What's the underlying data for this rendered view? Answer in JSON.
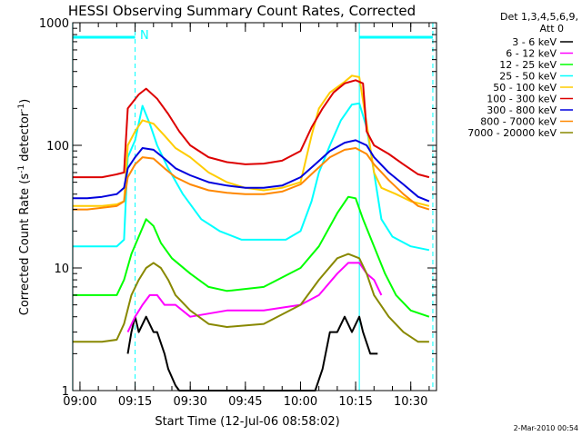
{
  "chart_data": {
    "type": "line",
    "title": "HESSI Observing Summary Count Rates, Corrected",
    "xlabel": "Start Time (12-Jul-06 08:58:02)",
    "ylabel": "Corrected Count Rate (s",
    "ylabel_sup1": "-1",
    "ylabel_mid": " detector",
    "ylabel_sup2": "-1",
    "ylabel_end": ")",
    "y_scale": "log",
    "ylim": [
      1,
      1000
    ],
    "y_ticks": [
      1,
      10,
      100,
      1000
    ],
    "y_tick_labels": [
      "1",
      "10",
      "100",
      "1000"
    ],
    "x_ticks": [
      "09:00",
      "09:15",
      "09:30",
      "09:45",
      "10:00",
      "10:15",
      "10:30"
    ],
    "x_range": [
      "08:58:02",
      "10:37:00"
    ],
    "legend_header": [
      "Det 1,3,4,5,6,9,",
      "Att 0"
    ],
    "legend_position": "right",
    "footer": "2-Mar-2010 00:54",
    "annotations": {
      "night_marker": "N"
    },
    "intervals": {
      "night_bars": [
        [
          "08:58",
          "09:15"
        ],
        [
          "10:16",
          "10:36"
        ]
      ],
      "dashed_lines": [
        "09:15",
        "10:36"
      ],
      "solid_lines": [
        "08:58",
        "10:16"
      ]
    },
    "series": [
      {
        "name": "3 - 6 keV",
        "color": "#000000",
        "points": [
          [
            "09:13",
            2
          ],
          [
            "09:14",
            3
          ],
          [
            "09:15",
            4
          ],
          [
            "09:16",
            3
          ],
          [
            "09:18",
            4
          ],
          [
            "09:20",
            3
          ],
          [
            "09:21",
            3
          ],
          [
            "09:23",
            2
          ],
          [
            "09:24",
            1.5
          ],
          [
            "09:26",
            1.1
          ],
          [
            "09:27",
            1.0
          ],
          [
            "10:04",
            1.0
          ],
          [
            "10:06",
            1.5
          ],
          [
            "10:08",
            3
          ],
          [
            "10:10",
            3
          ],
          [
            "10:12",
            4
          ],
          [
            "10:14",
            3
          ],
          [
            "10:16",
            4
          ],
          [
            "10:17",
            3
          ],
          [
            "10:19",
            2
          ],
          [
            "10:21",
            2
          ]
        ]
      },
      {
        "name": "6 - 12 keV",
        "color": "#ff00ff",
        "points": [
          [
            "09:13",
            3
          ],
          [
            "09:15",
            4
          ],
          [
            "09:17",
            5
          ],
          [
            "09:19",
            6
          ],
          [
            "09:21",
            6
          ],
          [
            "09:23",
            5
          ],
          [
            "09:26",
            5
          ],
          [
            "09:30",
            4
          ],
          [
            "09:40",
            4.5
          ],
          [
            "09:50",
            4.5
          ],
          [
            "10:00",
            5
          ],
          [
            "10:05",
            6
          ],
          [
            "10:10",
            9
          ],
          [
            "10:13",
            11
          ],
          [
            "10:16",
            11
          ],
          [
            "10:18",
            9
          ],
          [
            "10:20",
            8
          ],
          [
            "10:22",
            6
          ]
        ]
      },
      {
        "name": "12 - 25 keV",
        "color": "#00ff00",
        "points": [
          [
            "08:58",
            6
          ],
          [
            "09:02",
            6
          ],
          [
            "09:06",
            6
          ],
          [
            "09:10",
            6
          ],
          [
            "09:12",
            8
          ],
          [
            "09:14",
            13
          ],
          [
            "09:16",
            18
          ],
          [
            "09:18",
            25
          ],
          [
            "09:20",
            22
          ],
          [
            "09:22",
            16
          ],
          [
            "09:25",
            12
          ],
          [
            "09:30",
            9
          ],
          [
            "09:35",
            7
          ],
          [
            "09:40",
            6.5
          ],
          [
            "09:50",
            7
          ],
          [
            "10:00",
            10
          ],
          [
            "10:05",
            15
          ],
          [
            "10:10",
            28
          ],
          [
            "10:13",
            38
          ],
          [
            "10:15",
            37
          ],
          [
            "10:17",
            25
          ],
          [
            "10:20",
            15
          ],
          [
            "10:23",
            9
          ],
          [
            "10:26",
            6
          ],
          [
            "10:30",
            4.5
          ],
          [
            "10:35",
            4
          ]
        ]
      },
      {
        "name": "25 - 50 keV",
        "color": "#00ffff",
        "points": [
          [
            "08:58",
            15
          ],
          [
            "09:02",
            15
          ],
          [
            "09:06",
            15
          ],
          [
            "09:10",
            15
          ],
          [
            "09:12",
            17
          ],
          [
            "09:13",
            80
          ],
          [
            "09:15",
            110
          ],
          [
            "09:17",
            210
          ],
          [
            "09:19",
            150
          ],
          [
            "09:21",
            100
          ],
          [
            "09:24",
            65
          ],
          [
            "09:28",
            40
          ],
          [
            "09:33",
            25
          ],
          [
            "09:38",
            20
          ],
          [
            "09:44",
            17
          ],
          [
            "09:50",
            17
          ],
          [
            "09:56",
            17
          ],
          [
            "10:00",
            20
          ],
          [
            "10:03",
            35
          ],
          [
            "10:05",
            60
          ],
          [
            "10:08",
            100
          ],
          [
            "10:11",
            160
          ],
          [
            "10:14",
            215
          ],
          [
            "10:16",
            220
          ],
          [
            "10:18",
            140
          ],
          [
            "10:20",
            60
          ],
          [
            "10:22",
            25
          ],
          [
            "10:25",
            18
          ],
          [
            "10:30",
            15
          ],
          [
            "10:35",
            14
          ]
        ]
      },
      {
        "name": "50 - 100 keV",
        "color": "#ffcc00",
        "points": [
          [
            "08:58",
            32
          ],
          [
            "09:02",
            32
          ],
          [
            "09:06",
            32
          ],
          [
            "09:10",
            33
          ],
          [
            "09:12",
            35
          ],
          [
            "09:13",
            100
          ],
          [
            "09:15",
            130
          ],
          [
            "09:17",
            160
          ],
          [
            "09:20",
            150
          ],
          [
            "09:23",
            120
          ],
          [
            "09:26",
            95
          ],
          [
            "09:30",
            80
          ],
          [
            "09:35",
            60
          ],
          [
            "09:40",
            50
          ],
          [
            "09:45",
            45
          ],
          [
            "09:50",
            43
          ],
          [
            "09:55",
            45
          ],
          [
            "10:00",
            50
          ],
          [
            "10:03",
            120
          ],
          [
            "10:05",
            200
          ],
          [
            "10:08",
            270
          ],
          [
            "10:12",
            330
          ],
          [
            "10:14",
            370
          ],
          [
            "10:16",
            360
          ],
          [
            "10:18",
            150
          ],
          [
            "10:20",
            60
          ],
          [
            "10:22",
            45
          ],
          [
            "10:26",
            40
          ],
          [
            "10:30",
            35
          ],
          [
            "10:35",
            32
          ]
        ]
      },
      {
        "name": "100 - 300 keV",
        "color": "#dd0000",
        "points": [
          [
            "08:58",
            55
          ],
          [
            "09:02",
            55
          ],
          [
            "09:06",
            55
          ],
          [
            "09:10",
            58
          ],
          [
            "09:12",
            60
          ],
          [
            "09:13",
            200
          ],
          [
            "09:16",
            260
          ],
          [
            "09:18",
            290
          ],
          [
            "09:21",
            240
          ],
          [
            "09:24",
            180
          ],
          [
            "09:27",
            130
          ],
          [
            "09:30",
            100
          ],
          [
            "09:35",
            80
          ],
          [
            "09:40",
            73
          ],
          [
            "09:45",
            70
          ],
          [
            "09:50",
            71
          ],
          [
            "09:55",
            75
          ],
          [
            "10:00",
            90
          ],
          [
            "10:03",
            140
          ],
          [
            "10:06",
            200
          ],
          [
            "10:09",
            270
          ],
          [
            "10:12",
            320
          ],
          [
            "10:15",
            340
          ],
          [
            "10:17",
            320
          ],
          [
            "10:18",
            130
          ],
          [
            "10:20",
            100
          ],
          [
            "10:24",
            85
          ],
          [
            "10:28",
            70
          ],
          [
            "10:32",
            58
          ],
          [
            "10:35",
            55
          ]
        ]
      },
      {
        "name": "300 - 800 keV",
        "color": "#0000dd",
        "points": [
          [
            "08:58",
            37
          ],
          [
            "09:02",
            37
          ],
          [
            "09:06",
            38
          ],
          [
            "09:10",
            40
          ],
          [
            "09:12",
            45
          ],
          [
            "09:13",
            65
          ],
          [
            "09:15",
            80
          ],
          [
            "09:17",
            95
          ],
          [
            "09:20",
            92
          ],
          [
            "09:23",
            78
          ],
          [
            "09:26",
            65
          ],
          [
            "09:30",
            57
          ],
          [
            "09:35",
            50
          ],
          [
            "09:40",
            47
          ],
          [
            "09:45",
            45
          ],
          [
            "09:50",
            45
          ],
          [
            "09:55",
            47
          ],
          [
            "10:00",
            55
          ],
          [
            "10:04",
            70
          ],
          [
            "10:08",
            90
          ],
          [
            "10:12",
            105
          ],
          [
            "10:15",
            110
          ],
          [
            "10:18",
            100
          ],
          [
            "10:20",
            80
          ],
          [
            "10:24",
            60
          ],
          [
            "10:28",
            48
          ],
          [
            "10:32",
            38
          ],
          [
            "10:35",
            35
          ]
        ]
      },
      {
        "name": "800 - 7000 keV",
        "color": "#ff8800",
        "points": [
          [
            "08:58",
            30
          ],
          [
            "09:02",
            30
          ],
          [
            "09:06",
            31
          ],
          [
            "09:10",
            32
          ],
          [
            "09:12",
            35
          ],
          [
            "09:13",
            55
          ],
          [
            "09:15",
            70
          ],
          [
            "09:17",
            80
          ],
          [
            "09:20",
            78
          ],
          [
            "09:23",
            65
          ],
          [
            "09:26",
            55
          ],
          [
            "09:30",
            48
          ],
          [
            "09:35",
            43
          ],
          [
            "09:40",
            41
          ],
          [
            "09:45",
            40
          ],
          [
            "09:50",
            40
          ],
          [
            "09:55",
            42
          ],
          [
            "10:00",
            48
          ],
          [
            "10:04",
            62
          ],
          [
            "10:08",
            80
          ],
          [
            "10:12",
            92
          ],
          [
            "10:15",
            95
          ],
          [
            "10:18",
            85
          ],
          [
            "10:20",
            70
          ],
          [
            "10:24",
            52
          ],
          [
            "10:28",
            40
          ],
          [
            "10:32",
            32
          ],
          [
            "10:35",
            30
          ]
        ]
      },
      {
        "name": "7000 - 20000 keV",
        "color": "#888800",
        "points": [
          [
            "08:58",
            2.5
          ],
          [
            "09:02",
            2.5
          ],
          [
            "09:06",
            2.5
          ],
          [
            "09:10",
            2.6
          ],
          [
            "09:12",
            3.5
          ],
          [
            "09:14",
            6
          ],
          [
            "09:16",
            8
          ],
          [
            "09:18",
            10
          ],
          [
            "09:20",
            11
          ],
          [
            "09:22",
            10
          ],
          [
            "09:24",
            8
          ],
          [
            "09:26",
            6
          ],
          [
            "09:30",
            4.5
          ],
          [
            "09:35",
            3.5
          ],
          [
            "09:40",
            3.3
          ],
          [
            "09:50",
            3.5
          ],
          [
            "10:00",
            5
          ],
          [
            "10:05",
            8
          ],
          [
            "10:10",
            12
          ],
          [
            "10:13",
            13
          ],
          [
            "10:16",
            12
          ],
          [
            "10:18",
            9
          ],
          [
            "10:20",
            6
          ],
          [
            "10:24",
            4
          ],
          [
            "10:28",
            3
          ],
          [
            "10:32",
            2.5
          ],
          [
            "10:35",
            2.5
          ]
        ]
      }
    ]
  }
}
